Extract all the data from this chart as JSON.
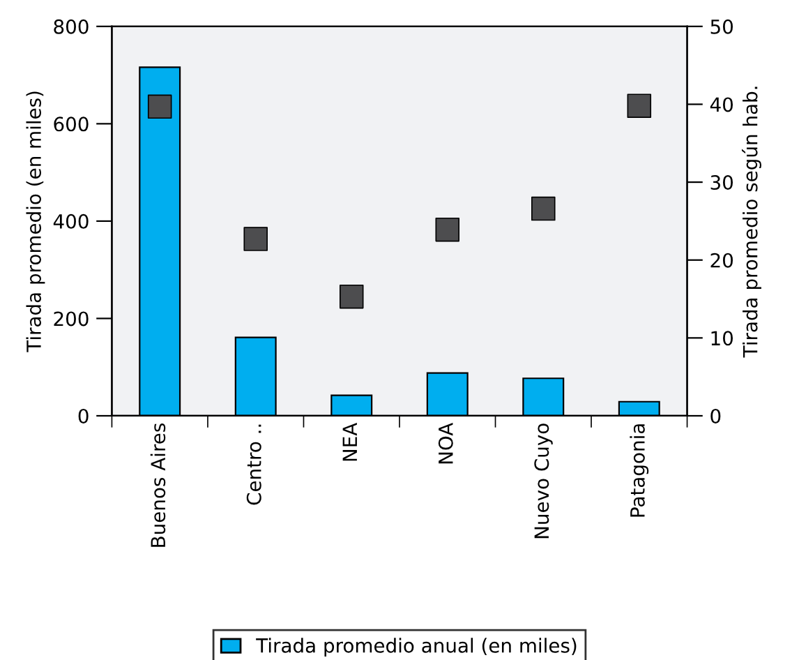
{
  "chart_data": {
    "type": "bar",
    "categories": [
      "Buenos Aires",
      "Centro ..",
      "NEA",
      "NOA",
      "Nuevo Cuyo",
      "Patagonia"
    ],
    "series": [
      {
        "name": "Tirada promedio anual (en miles)",
        "color": "#00aeef",
        "values": [
          716,
          161,
          42,
          88,
          77,
          29
        ]
      },
      {
        "type": "scatter",
        "axis": "y2",
        "color": "#4d4d4f",
        "marker": "square",
        "values": [
          39.7,
          22.7,
          15.3,
          23.9,
          26.6,
          39.8
        ]
      }
    ],
    "ylabel": "Tirada promedio (en miles)",
    "y2label": "Tirada promedio según hab.",
    "ylim": [
      0,
      800
    ],
    "yticks": [
      0,
      200,
      400,
      600,
      800
    ],
    "y2lim": [
      0,
      50
    ],
    "y2ticks": [
      0,
      10,
      20,
      30,
      40,
      50
    ],
    "grid": false,
    "legend": "bottom"
  }
}
